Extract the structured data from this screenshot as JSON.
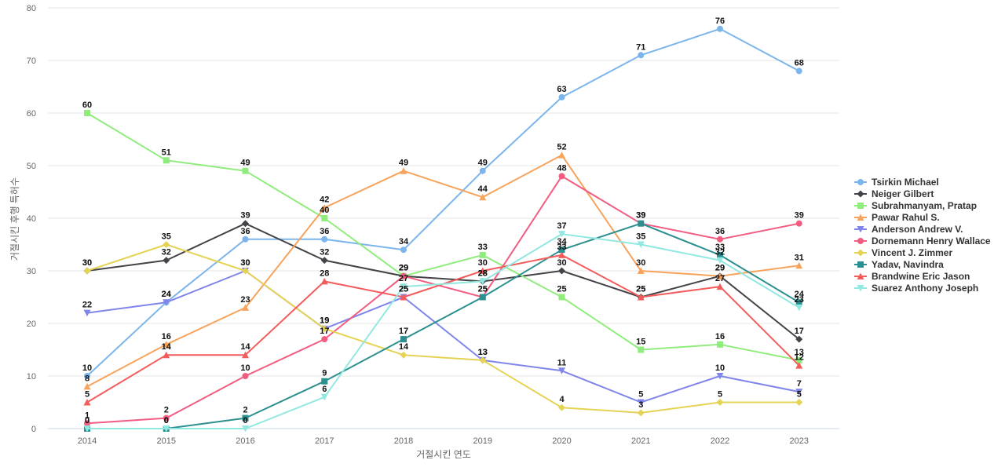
{
  "chart_data": {
    "type": "line",
    "xlabel": "거절시킨 연도",
    "ylabel": "거절시킨 후행 특허수",
    "ylim": [
      0,
      80
    ],
    "yticks": [
      0,
      10,
      20,
      30,
      40,
      50,
      60,
      70,
      80
    ],
    "grid": true,
    "legend_position": "right",
    "categories": [
      "2014",
      "2015",
      "2016",
      "2017",
      "2018",
      "2019",
      "2020",
      "2021",
      "2022",
      "2023"
    ],
    "series": [
      {
        "name": "Tsirkin Michael",
        "color": "#7cb5ec",
        "marker": "circle",
        "values": [
          10,
          24,
          36,
          36,
          34,
          49,
          63,
          71,
          76,
          68
        ]
      },
      {
        "name": "Neiger Gilbert",
        "color": "#434348",
        "marker": "diamond",
        "values": [
          30,
          32,
          39,
          32,
          29,
          28,
          30,
          25,
          29,
          17
        ]
      },
      {
        "name": "Subrahmanyam, Pratap",
        "color": "#90ed7d",
        "marker": "square",
        "values": [
          60,
          51,
          49,
          40,
          29,
          33,
          25,
          15,
          16,
          13
        ]
      },
      {
        "name": "Pawar Rahul S.",
        "color": "#f7a35c",
        "marker": "triangle",
        "values": [
          8,
          16,
          23,
          42,
          49,
          44,
          52,
          30,
          29,
          31
        ]
      },
      {
        "name": "Anderson Andrew V.",
        "color": "#8085e9",
        "marker": "triangle-down",
        "values": [
          22,
          24,
          30,
          19,
          25,
          13,
          11,
          5,
          10,
          7
        ]
      },
      {
        "name": "Dornemann Henry Wallace",
        "color": "#f15c80",
        "marker": "circle",
        "values": [
          1,
          2,
          10,
          17,
          29,
          25,
          48,
          39,
          36,
          39
        ]
      },
      {
        "name": "Vincent J. Zimmer",
        "color": "#e4d354",
        "marker": "diamond",
        "values": [
          30,
          35,
          30,
          19,
          14,
          13,
          4,
          3,
          5,
          5
        ]
      },
      {
        "name": "Yadav, Navindra",
        "color": "#2b908f",
        "marker": "square",
        "values": [
          0,
          0,
          2,
          9,
          17,
          25,
          34,
          39,
          33,
          24
        ]
      },
      {
        "name": "Brandwine Eric Jason",
        "color": "#f45b5b",
        "marker": "triangle",
        "values": [
          5,
          14,
          14,
          28,
          25,
          30,
          33,
          25,
          27,
          12
        ]
      },
      {
        "name": "Suarez Anthony Joseph",
        "color": "#91e8e1",
        "marker": "triangle-down",
        "values": [
          0,
          0,
          0,
          6,
          27,
          28,
          37,
          35,
          32,
          23
        ]
      }
    ]
  }
}
